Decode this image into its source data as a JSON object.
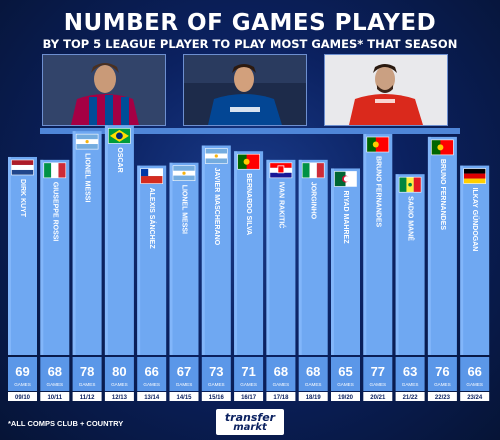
{
  "header": {
    "title": "NUMBER OF GAMES PLAYED",
    "subtitle": "BY TOP 5 LEAGUE PLAYER TO PLAY MOST GAMES* THAT SEASON"
  },
  "footer": {
    "note": "*ALL COMPS CLUB + COUNTRY",
    "logo_line1": "transfer",
    "logo_line2": "markt"
  },
  "photos": [
    {
      "name": "messi-photo",
      "shirt": "#a50044",
      "stripe": "#004d98"
    },
    {
      "name": "oscar-photo",
      "shirt": "#034694",
      "stripe": "#034694"
    },
    {
      "name": "bruno-photo",
      "shirt": "#da291c",
      "stripe": "#da291c"
    }
  ],
  "chart_data": {
    "type": "bar",
    "title": "NUMBER OF GAMES PLAYED",
    "subtitle": "BY TOP 5 LEAGUE PLAYER TO PLAY MOST GAMES* THAT SEASON",
    "unit_label": "GAMES",
    "ylim": [
      0,
      80
    ],
    "bar_color": "#6fa8f2",
    "categories": [
      "09/10",
      "10/11",
      "11/12",
      "12/13",
      "13/14",
      "14/15",
      "15/16",
      "16/17",
      "17/18",
      "18/19",
      "19/20",
      "20/21",
      "21/22",
      "22/23",
      "23/24"
    ],
    "players": [
      "DIRK KUYT",
      "GIUSEPPE ROSSI",
      "LIONEL MESSI",
      "OSCAR",
      "ALEXIS SÁNCHEZ",
      "LIONEL MESSI",
      "JAVIER MASCHERANO",
      "BERNARDO SILVA",
      "IVAN RAKITIĆ",
      "JORGINHO",
      "RIYAD MAHREZ",
      "BRUNO FERNANDES",
      "SADIO MANÉ",
      "BRUNO FERNANDES",
      "ILKAY GÜNDOGAN"
    ],
    "flags": [
      "netherlands",
      "italy",
      "argentina",
      "brazil",
      "chile",
      "argentina",
      "argentina",
      "portugal",
      "croatia",
      "italy",
      "algeria",
      "portugal",
      "senegal",
      "portugal",
      "germany"
    ],
    "values": [
      69,
      68,
      78,
      80,
      66,
      67,
      73,
      71,
      68,
      68,
      65,
      77,
      63,
      76,
      66
    ]
  }
}
